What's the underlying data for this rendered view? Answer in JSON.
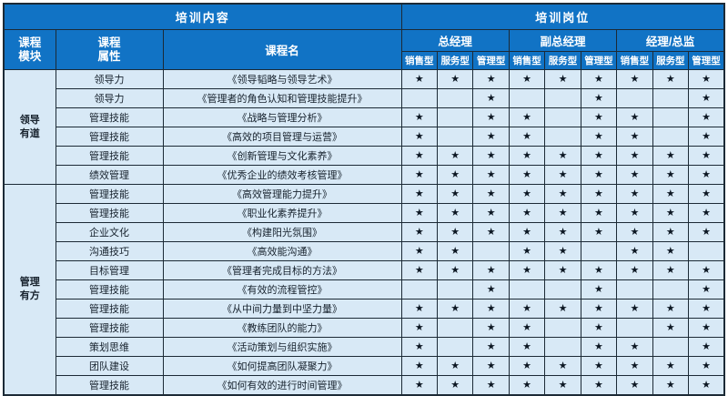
{
  "table": {
    "header": {
      "content_title": "培训内容",
      "position_title": "培训岗位",
      "col_module": "课程\n模块",
      "col_attr": "课程\n属性",
      "col_name": "课程名",
      "groups": [
        "总经理",
        "副总经理",
        "经理/总监"
      ],
      "types": [
        "销售型",
        "服务型",
        "管理型"
      ]
    },
    "modules": [
      {
        "name": "领导有道",
        "display": "领导\n有道",
        "span": 6
      },
      {
        "name": "管理有方",
        "display": "管理\n有方",
        "span": 11
      }
    ],
    "rows": [
      {
        "attr": "领导力",
        "course": "《领导韬略与领导艺术》",
        "stars": [
          1,
          1,
          1,
          1,
          1,
          1,
          1,
          1,
          1
        ]
      },
      {
        "attr": "领导力",
        "course": "《管理者的角色认知和管理技能提升》",
        "stars": [
          0,
          0,
          1,
          0,
          0,
          1,
          0,
          0,
          1
        ]
      },
      {
        "attr": "管理技能",
        "course": "《战略与管理分析》",
        "stars": [
          1,
          0,
          1,
          1,
          0,
          1,
          1,
          0,
          1
        ]
      },
      {
        "attr": "管理技能",
        "course": "《高效的项目管理与运营》",
        "stars": [
          1,
          0,
          1,
          1,
          0,
          1,
          1,
          0,
          1
        ]
      },
      {
        "attr": "管理技能",
        "course": "《创新管理与文化素养》",
        "stars": [
          1,
          1,
          1,
          1,
          1,
          1,
          1,
          1,
          1
        ]
      },
      {
        "attr": "绩效管理",
        "course": "《优秀企业的绩效考核管理》",
        "stars": [
          1,
          1,
          1,
          1,
          1,
          1,
          1,
          1,
          1
        ]
      },
      {
        "attr": "管理技能",
        "course": "《高效管理能力提升》",
        "stars": [
          1,
          1,
          1,
          1,
          1,
          1,
          1,
          1,
          1
        ]
      },
      {
        "attr": "管理技能",
        "course": "《职业化素养提升》",
        "stars": [
          1,
          1,
          1,
          1,
          1,
          1,
          1,
          1,
          1
        ]
      },
      {
        "attr": "企业文化",
        "course": "《构建阳光氛围》",
        "stars": [
          1,
          1,
          1,
          1,
          1,
          1,
          1,
          1,
          1
        ]
      },
      {
        "attr": "沟通技巧",
        "course": "《高效能沟通》",
        "stars": [
          1,
          1,
          0,
          1,
          1,
          0,
          1,
          1,
          0
        ]
      },
      {
        "attr": "目标管理",
        "course": "《管理者完成目标的方法》",
        "stars": [
          1,
          1,
          1,
          1,
          1,
          1,
          1,
          1,
          1
        ]
      },
      {
        "attr": "管理技能",
        "course": "《有效的流程管控》",
        "stars": [
          0,
          0,
          1,
          0,
          0,
          1,
          0,
          0,
          1
        ]
      },
      {
        "attr": "管理技能",
        "course": "《从中间力量到中坚力量》",
        "stars": [
          1,
          1,
          1,
          1,
          1,
          1,
          1,
          1,
          1
        ]
      },
      {
        "attr": "管理技能",
        "course": "《教练团队的能力》",
        "stars": [
          1,
          0,
          1,
          1,
          0,
          1,
          0,
          1,
          1
        ]
      },
      {
        "attr": "策划思维",
        "course": "《活动策划与组织实施》",
        "stars": [
          1,
          0,
          1,
          1,
          0,
          1,
          1,
          0,
          1
        ]
      },
      {
        "attr": "团队建设",
        "course": "《如何提高团队凝聚力》",
        "stars": [
          1,
          1,
          1,
          1,
          1,
          1,
          1,
          1,
          1
        ]
      },
      {
        "attr": "管理技能",
        "course": "《如何有效的进行时间管理》",
        "stars": [
          1,
          1,
          1,
          1,
          1,
          1,
          1,
          1,
          1
        ]
      }
    ],
    "star_glyph": "★",
    "colors": {
      "header_blue": "#1173c5",
      "cell_bg": "#d8e9f6",
      "border": "#1c2a36",
      "star": "#0c1723",
      "header_text": "#ffffff"
    }
  }
}
